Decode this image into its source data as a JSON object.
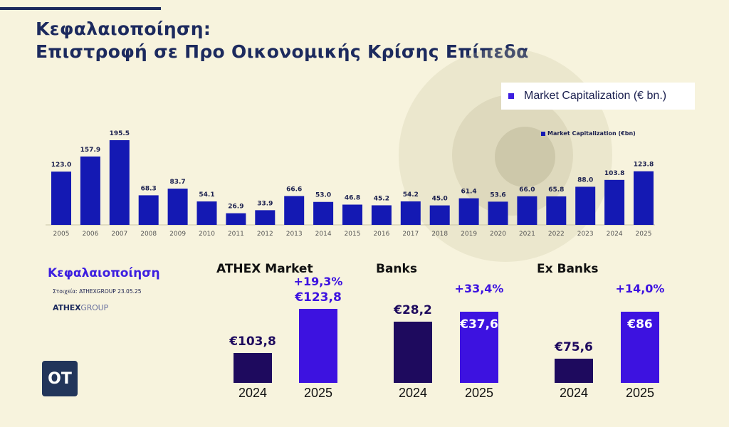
{
  "header": {
    "title_line1": "Κεφαλαιοποίηση:",
    "title_line2": "Επιστροφή σε Προ Οικονομικής Κρίσης Επίπεδα"
  },
  "legend": {
    "main": "Market Capitalization (€ bn.)",
    "small": "Market Capitalization (€bn)"
  },
  "colors": {
    "background": "#f7f3dd",
    "bar_main": "#1419b3",
    "bar_2024": "#1e0a5e",
    "bar_2025": "#3d12e0",
    "accent": "#3d1fe0"
  },
  "chart_data": [
    {
      "type": "bar",
      "categories": [
        "2005",
        "2006",
        "2007",
        "2008",
        "2009",
        "2010",
        "2011",
        "2012",
        "2013",
        "2014",
        "2015",
        "2016",
        "2017",
        "2018",
        "2019",
        "2020",
        "2021",
        "2022",
        "2023",
        "2024",
        "2025"
      ],
      "values": [
        123.0,
        157.9,
        195.5,
        68.3,
        83.7,
        54.1,
        26.9,
        33.9,
        66.6,
        53.0,
        46.8,
        45.2,
        54.2,
        45.0,
        61.4,
        53.6,
        66.0,
        65.8,
        88.0,
        103.8,
        123.8
      ],
      "labels": [
        "123.0",
        "157.9",
        "195.5",
        "68.3",
        "83.7",
        "54.1",
        "26.9",
        "33.9",
        "66.6",
        "53.0",
        "46.8",
        "45.2",
        "54.2",
        "45.0",
        "61.4",
        "53.6",
        "66.0",
        "65.8",
        "88.0",
        "103.8",
        "123.8"
      ],
      "series": [
        {
          "name": "Market Capitalization (€bn)"
        }
      ],
      "ylim": [
        0,
        200
      ],
      "grid": false,
      "legend_position": "top-right"
    },
    {
      "type": "bar",
      "title": "ATHEX Market",
      "categories": [
        "2024",
        "2025"
      ],
      "values": [
        103.8,
        123.8
      ],
      "labels": [
        "€103,8",
        "€123,8"
      ],
      "change": "+19,3%"
    },
    {
      "type": "bar",
      "title": "Banks",
      "categories": [
        "2024",
        "2025"
      ],
      "values": [
        28.2,
        37.6
      ],
      "labels": [
        "€28,2",
        "€37,6"
      ],
      "change": "+33,4%"
    },
    {
      "type": "bar",
      "title": "Ex Banks",
      "categories": [
        "2024",
        "2025"
      ],
      "values": [
        75.6,
        86
      ],
      "labels": [
        "€75,6",
        "€86"
      ],
      "change": "+14,0%"
    }
  ],
  "sidebar": {
    "subtitle": "Κεφαλαιοποίηση",
    "source": "Στοιχεία: ATHEXGROUP 23.05.25",
    "logo_bold": "ATHEX",
    "logo_light": "GROUP",
    "ot_logo": "OT"
  }
}
